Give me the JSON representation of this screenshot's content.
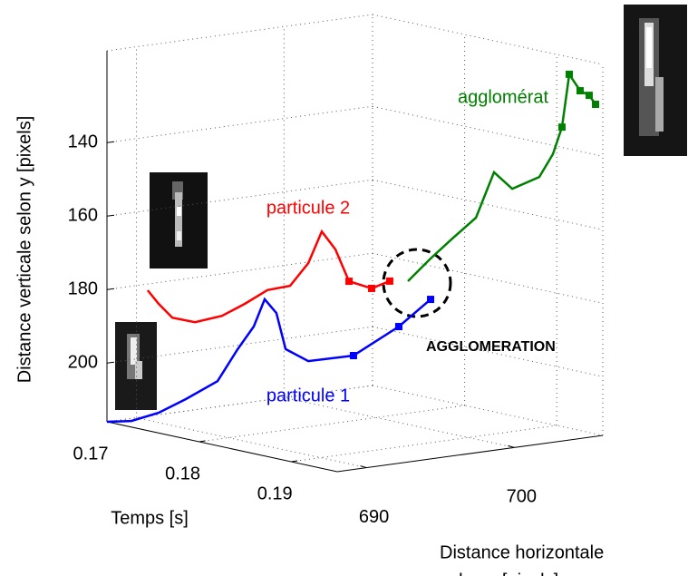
{
  "chart_data": {
    "type": "line3d",
    "xlabel": [
      "Distance horizontale",
      "selon x [pixels]"
    ],
    "tlabel": "Temps [s]",
    "ylabel": "Distance verticale selon y [pixels]",
    "xlim": [
      688,
      706
    ],
    "tlim": [
      0.17,
      0.195
    ],
    "ylim": [
      216,
      115
    ],
    "y_reversed": true,
    "xticks": [
      690,
      700
    ],
    "tticks": [
      0.17,
      0.18,
      0.19
    ],
    "yticks": [
      140,
      160,
      180,
      200
    ],
    "grid": true,
    "series": [
      {
        "name": "particule 1",
        "color": "#0000ff",
        "t": [
          0.17,
          0.171,
          0.172,
          0.173,
          0.174,
          0.175,
          0.176,
          0.177,
          0.178,
          0.179,
          0.18,
          0.181,
          0.182,
          0.183
        ],
        "x": [
          688,
          689.03,
          690.25,
          691.47,
          693.0,
          693.73,
          694.21,
          694.32,
          694.49,
          694.49,
          695.4,
          697.84,
          700.29,
          701.82
        ],
        "values": [
          216,
          215.8,
          213.7,
          210.1,
          205.5,
          196.7,
          190.2,
          182.3,
          185.6,
          194.9,
          198.1,
          197.4,
          190.3,
          183.2
        ]
      },
      {
        "name": "particule 2",
        "color": "#ff0000",
        "t": [
          0.17,
          0.171,
          0.172,
          0.173,
          0.174,
          0.175,
          0.176,
          0.177,
          0.178,
          0.179,
          0.18,
          0.181,
          0.182,
          0.183
        ],
        "x": [
          690.76,
          690.88,
          691.18,
          692.09,
          693.3,
          694.22,
          695.13,
          696.04,
          696.65,
          696.94,
          697.24,
          697.54,
          698.45,
          699.05
        ],
        "values": [
          181.7,
          184.9,
          188.3,
          189.5,
          187.9,
          184.6,
          180.8,
          179.6,
          173.2,
          164.2,
          168.7,
          177.0,
          178.9,
          176.7
        ]
      },
      {
        "name": "agglomérat",
        "color": "#008000",
        "t": [
          0.183,
          0.184,
          0.185,
          0.186,
          0.187,
          0.188,
          0.189,
          0.19,
          0.191,
          0.192,
          0.193,
          0.194,
          0.195
        ],
        "x": [
          700.28,
          701.19,
          702.1,
          703.02,
          703.62,
          704.23,
          705.44,
          705.74,
          705.73,
          705.6,
          705.71,
          705.7,
          705.51
        ],
        "values": [
          177.4,
          171.2,
          165.5,
          160.0,
          147.4,
          151.7,
          148.6,
          142.0,
          134.1,
          119.1,
          123.1,
          123.8,
          125.6
        ]
      }
    ],
    "annotation": "AGGLOMERATION"
  }
}
